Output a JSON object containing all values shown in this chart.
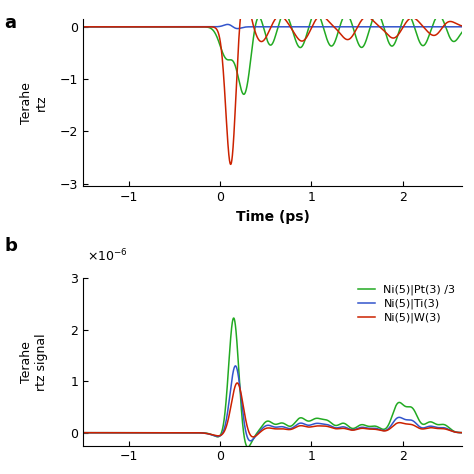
{
  "panel_a": {
    "ylabel": "Terahertz",
    "xlabel": "Time (ps)",
    "xlim": [
      -1.5,
      2.65
    ],
    "ylim": [
      -3.05,
      0.15
    ],
    "yticks": [
      -3,
      -2,
      -1,
      0
    ],
    "xticks": [
      -1,
      0,
      1,
      2
    ],
    "colors": {
      "green": "#22aa22",
      "blue": "#3355cc",
      "red": "#cc2200"
    }
  },
  "panel_b": {
    "ylabel": "Terahertz signal",
    "xlim": [
      -1.5,
      2.65
    ],
    "ylim": [
      -2.5e-07,
      3e-06
    ],
    "yticks": [
      0,
      1e-06,
      2e-06,
      3e-06
    ],
    "xticks": [
      -1,
      0,
      1,
      2
    ],
    "legend": [
      "Ni(5)|Pt(3) /3",
      "Ni(5)|Ti(3)",
      "Ni(5)|W(3)"
    ],
    "legend_colors": [
      "#22aa22",
      "#3355cc",
      "#cc2200"
    ]
  },
  "label_a": "a",
  "label_b": "b"
}
